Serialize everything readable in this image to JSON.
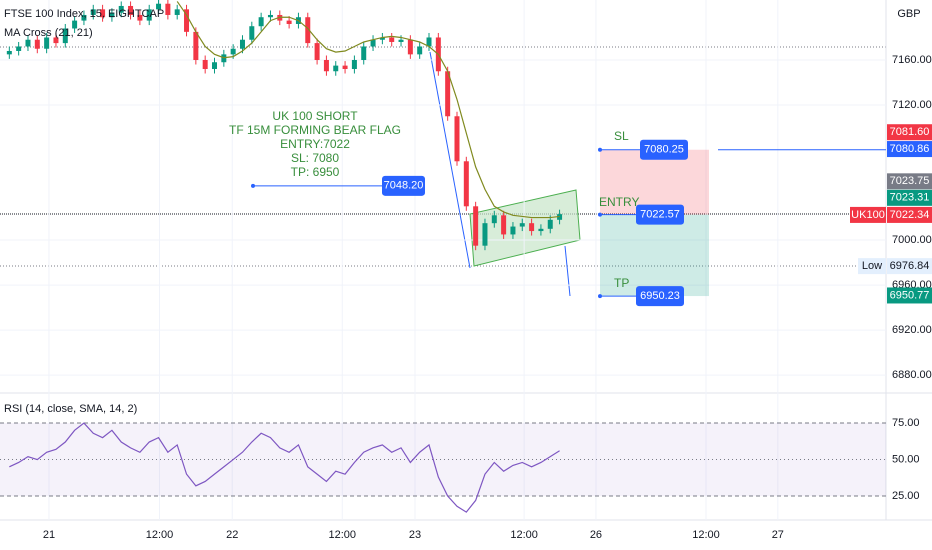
{
  "chart_data": {
    "type": "candlestick",
    "title": "FTSE 100 Index, 15, EIGHTCAP",
    "currency": "GBP",
    "up_color": "#089981",
    "down_color": "#f23645",
    "xlim": [
      -1,
      94
    ],
    "xticks": [
      {
        "value": 4.25,
        "label": "21"
      },
      {
        "value": 16.1,
        "label": "12:00"
      },
      {
        "value": 23.9,
        "label": "22"
      },
      {
        "value": 35.7,
        "label": "12:00"
      },
      {
        "value": 43.5,
        "label": "23"
      },
      {
        "value": 55.2,
        "label": "12:00"
      },
      {
        "value": 62.9,
        "label": "26"
      },
      {
        "value": 74.7,
        "label": "12:00"
      },
      {
        "value": 82.4,
        "label": "27"
      }
    ],
    "ylim": [
      6865,
      7213.3
    ],
    "yticks": [
      {
        "value": 7160,
        "label": "7160.00"
      },
      {
        "value": 7120,
        "label": "7120.00"
      },
      {
        "value": 7000,
        "label": "7000.00"
      },
      {
        "value": 6960,
        "label": "6960.00"
      },
      {
        "value": 6920,
        "label": "6920.00"
      },
      {
        "value": 6880,
        "label": "6880.00"
      }
    ],
    "open": [
      7165,
      7168,
      7172,
      7178,
      7170,
      7180,
      7175,
      7188,
      7195,
      7200,
      7205,
      7198,
      7202,
      7208,
      7200,
      7195,
      7205,
      7210,
      7200,
      7205,
      7185,
      7160,
      7152,
      7158,
      7165,
      7170,
      7178,
      7190,
      7198,
      7200,
      7195,
      7192,
      7198,
      7175,
      7160,
      7150,
      7155,
      7152,
      7160,
      7172,
      7178,
      7180,
      7176,
      7178,
      7165,
      7172,
      7180,
      7150,
      7110,
      7070,
      7030,
      6995,
      7015,
      7022,
      7005,
      7012,
      7015,
      7008,
      7010,
      7018
    ],
    "high": [
      7172,
      7176,
      7182,
      7182,
      7184,
      7184,
      7192,
      7199,
      7204,
      7209,
      7209,
      7206,
      7212,
      7212,
      7204,
      7209,
      7214,
      7214,
      7209,
      7209,
      7189,
      7164,
      7162,
      7169,
      7174,
      7182,
      7194,
      7202,
      7204,
      7204,
      7199,
      7202,
      7202,
      7179,
      7164,
      7159,
      7159,
      7164,
      7176,
      7182,
      7184,
      7184,
      7182,
      7182,
      7176,
      7184,
      7184,
      7154,
      7114,
      7074,
      7034,
      7019,
      7026,
      7026,
      7016,
      7019,
      7019,
      7014,
      7022,
      7027
    ],
    "low": [
      7161,
      7164,
      7168,
      7166,
      7166,
      7171,
      7171,
      7184,
      7191,
      7196,
      7194,
      7194,
      7198,
      7196,
      7191,
      7191,
      7201,
      7196,
      7196,
      7181,
      7156,
      7148,
      7148,
      7154,
      7161,
      7166,
      7174,
      7186,
      7194,
      7191,
      7188,
      7188,
      7171,
      7156,
      7146,
      7146,
      7148,
      7148,
      7156,
      7168,
      7174,
      7172,
      7172,
      7161,
      7161,
      7168,
      7146,
      7106,
      7066,
      7026,
      6991,
      6991,
      7011,
      7001,
      7001,
      7008,
      7004,
      7004,
      7006,
      7014
    ],
    "close": [
      7168,
      7172,
      7178,
      7170,
      7180,
      7175,
      7188,
      7195,
      7200,
      7205,
      7198,
      7202,
      7208,
      7200,
      7195,
      7205,
      7210,
      7200,
      7205,
      7185,
      7160,
      7152,
      7158,
      7165,
      7170,
      7178,
      7190,
      7198,
      7200,
      7195,
      7192,
      7198,
      7175,
      7160,
      7150,
      7155,
      7152,
      7160,
      7172,
      7178,
      7180,
      7176,
      7178,
      7165,
      7172,
      7180,
      7150,
      7110,
      7070,
      7030,
      6995,
      7015,
      7022,
      7005,
      7012,
      7015,
      7008,
      7010,
      7018,
      7023
    ],
    "indicators": [
      {
        "name": "MA Cross (21, 21)",
        "color": "#808a1f",
        "values": [
          null,
          null,
          null,
          null,
          null,
          null,
          null,
          null,
          null,
          null,
          null,
          null,
          null,
          null,
          null,
          null,
          null,
          null,
          7212,
          7200,
          7185,
          7172,
          7165,
          7162,
          7163,
          7168,
          7175,
          7185,
          7195,
          7198,
          7198,
          7195,
          7188,
          7178,
          7170,
          7167,
          7168,
          7172,
          7176,
          7178,
          7180,
          7181,
          7180,
          7178,
          7176,
          7172,
          7165,
          7150,
          7125,
          7095,
          7065,
          7045,
          7030,
          7025,
          7022,
          7021,
          7020,
          7020,
          7020,
          7021
        ]
      }
    ],
    "rsi": {
      "name": "RSI (14, close, SMA, 14, 2)",
      "color": "#7e57c2",
      "ylim": [
        8.6,
        94.2
      ],
      "yticks": [
        {
          "value": 75,
          "label": "75.00"
        },
        {
          "value": 50,
          "label": "50.00"
        },
        {
          "value": 25,
          "label": "25.00"
        }
      ],
      "values": [
        45,
        48,
        52,
        50,
        55,
        57,
        62,
        70,
        75,
        68,
        65,
        70,
        62,
        58,
        55,
        62,
        65,
        55,
        60,
        40,
        32,
        35,
        40,
        45,
        50,
        55,
        62,
        68,
        65,
        58,
        55,
        60,
        45,
        40,
        35,
        42,
        40,
        48,
        55,
        58,
        60,
        55,
        58,
        48,
        55,
        60,
        38,
        25,
        18,
        14,
        22,
        40,
        48,
        42,
        46,
        48,
        45,
        48,
        52,
        56
      ]
    },
    "annotation": {
      "lines": [
        "UK 100 SHORT",
        "TF 15M FORMING BEAR FLAG",
        "ENTRY:7022",
        "SL: 7080",
        "TP: 6950"
      ],
      "price": {
        "value": 7048.2,
        "label": "7048.20"
      }
    },
    "levels": [
      {
        "name": "SL",
        "value": 7080.25,
        "label": "7080.25"
      },
      {
        "name": "ENTRY",
        "value": 7022.57,
        "label": "7022.57"
      },
      {
        "name": "TP",
        "value": 6950.23,
        "label": "6950.23"
      }
    ],
    "price_tags": [
      {
        "value": 7081.6,
        "label": "7081.60",
        "color": "#f23645"
      },
      {
        "value": 7080.86,
        "label": "7080.86",
        "color": "#2962ff"
      },
      {
        "value": 7023.75,
        "label": "7023.75",
        "color": "#787b86"
      },
      {
        "value": 7023.31,
        "label": "7023.31",
        "color": "#089981"
      },
      {
        "value": 7022.34,
        "label": "7022.34",
        "color": "#f23645",
        "name": "UK100"
      },
      {
        "value": 6976.84,
        "label": "6976.84",
        "color": "#e3effd",
        "name": "Low"
      },
      {
        "value": 6950.77,
        "label": "6950.77",
        "color": "#089981"
      }
    ]
  }
}
